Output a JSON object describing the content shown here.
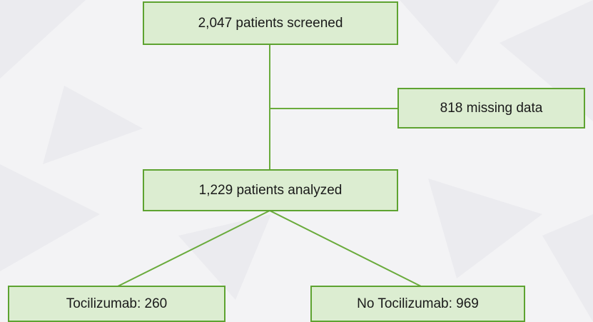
{
  "nodes": [
    {
      "label": "2,047 patients screened"
    },
    {
      "label": "818 missing data"
    },
    {
      "label": "1,229 patients analyzed"
    },
    {
      "label": "Tocilizumab: 260"
    },
    {
      "label": "No Tocilizumab: 969"
    }
  ]
}
